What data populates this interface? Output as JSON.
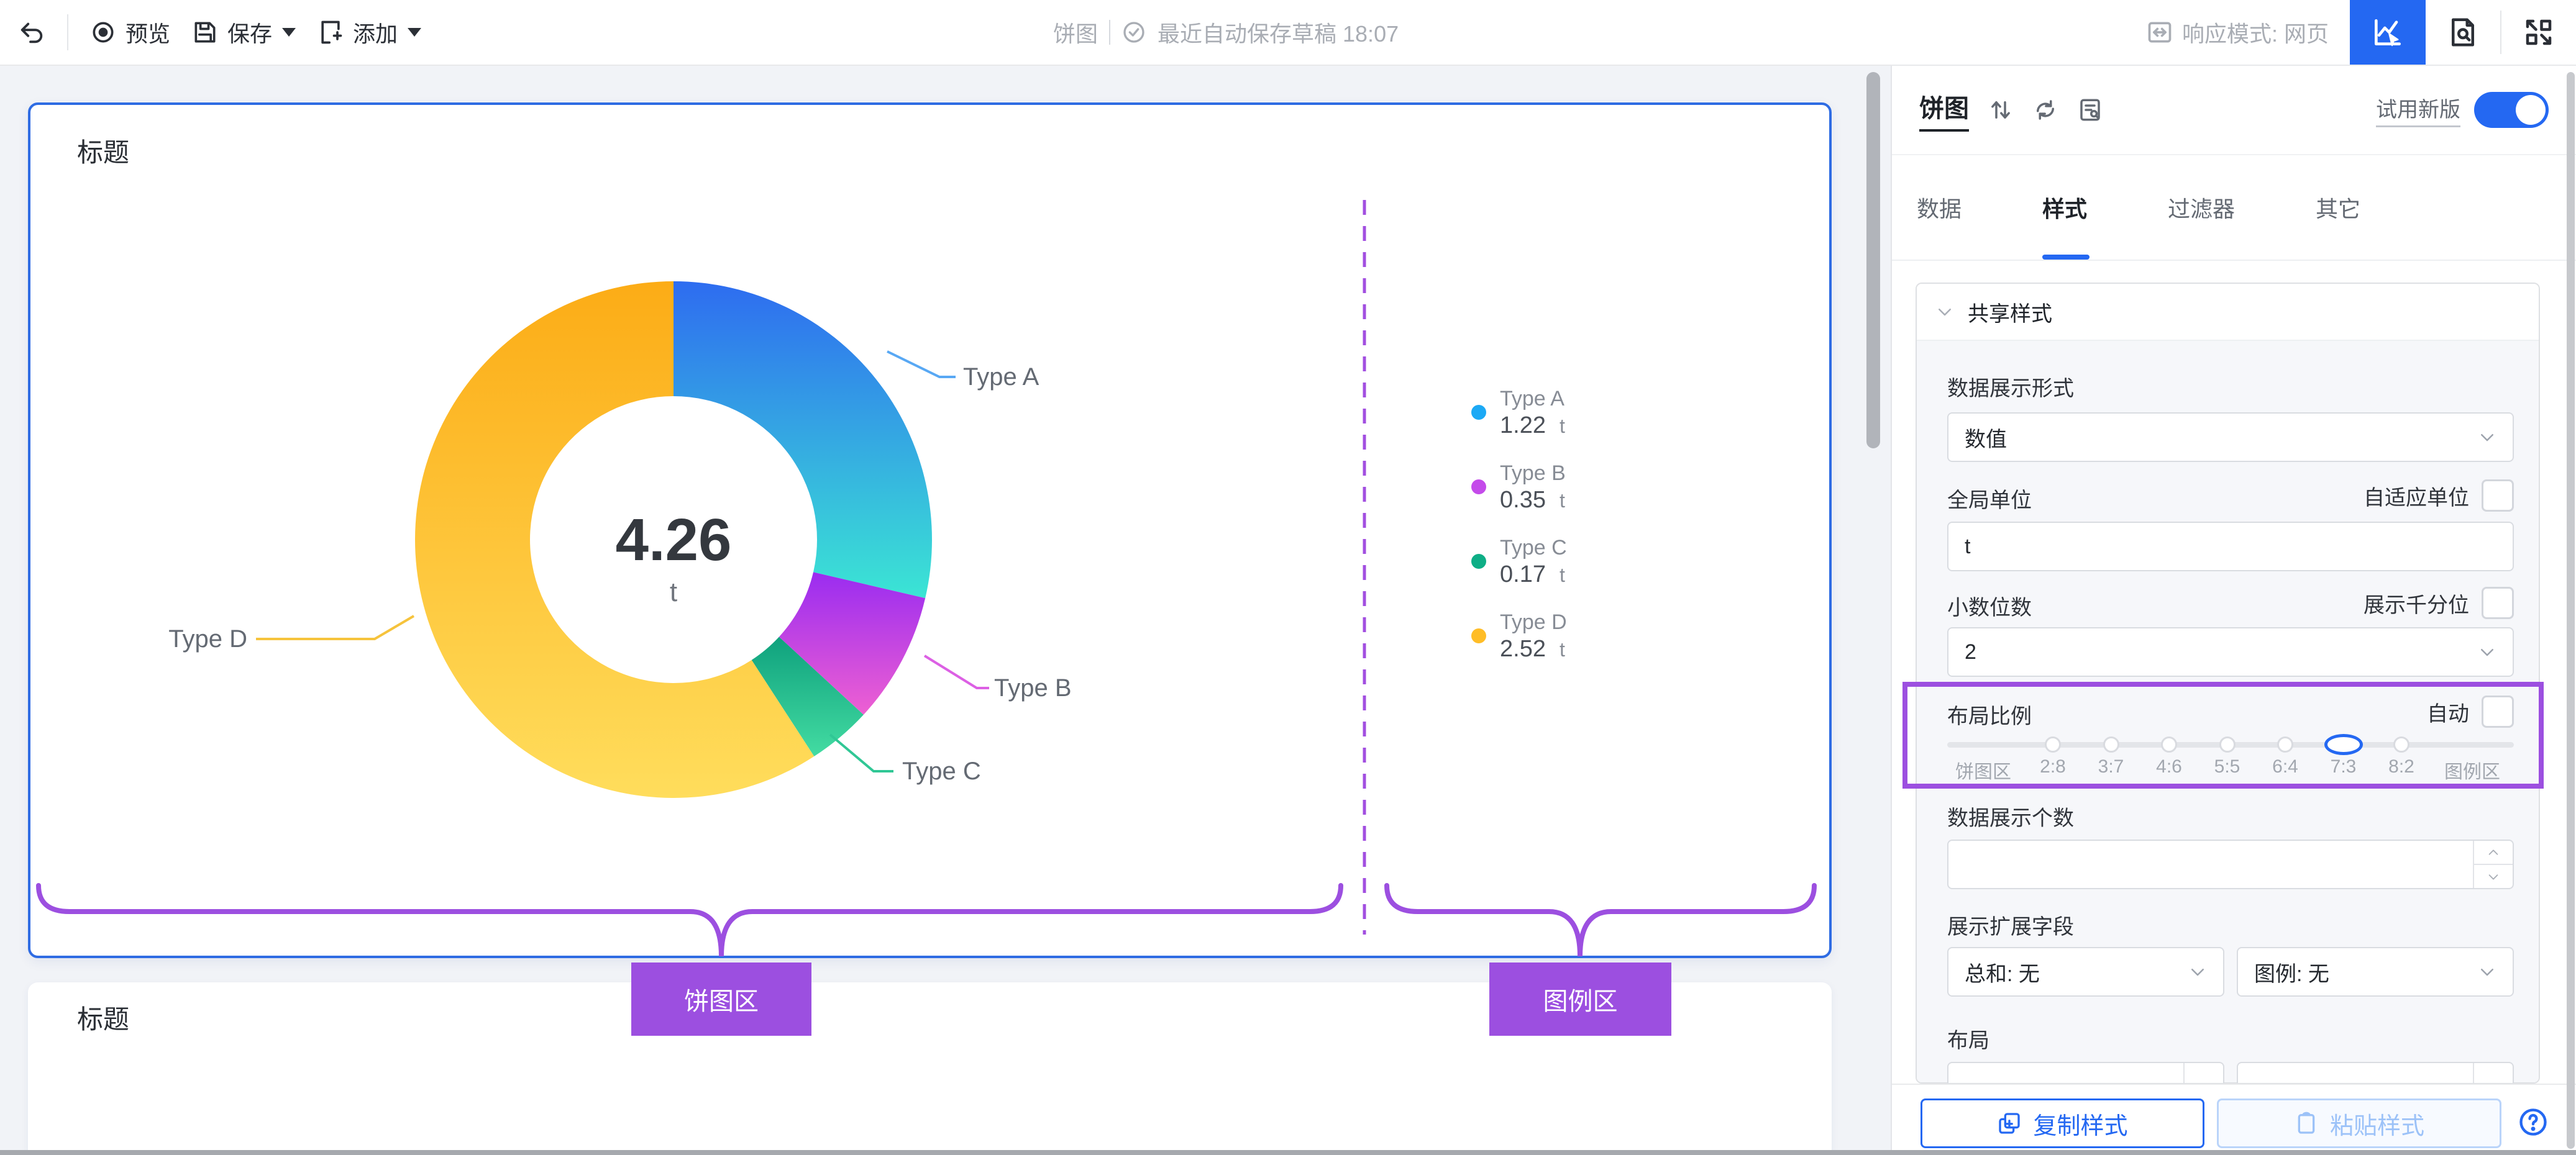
{
  "accent_color": "#2468F2",
  "annotation_color": "#9C4FE0",
  "toolbar": {
    "preview_label": "预览",
    "save_label": "保存",
    "add_label": "添加",
    "center": {
      "chart_name": "饼图",
      "autosave_text": "最近自动保存草稿 18:07"
    },
    "responsive_label": "响应模式: 网页"
  },
  "canvas": {
    "card1_title": "标题",
    "card2_title": "标题",
    "pie_area_label": "饼图区",
    "legend_area_label": "图例区"
  },
  "chart_data": {
    "type": "pie",
    "donut": true,
    "title": "标题",
    "categories": [
      "Type A",
      "Type B",
      "Type C",
      "Type D"
    ],
    "values": [
      1.22,
      0.35,
      0.17,
      2.52
    ],
    "unit": "t",
    "center_value": "4.26",
    "center_unit": "t",
    "legend_position": "right",
    "slice_gradients": [
      [
        "#2E6CF0",
        "#3BE5D4"
      ],
      [
        "#9A2CF0",
        "#EE60D2"
      ],
      [
        "#0FA17D",
        "#43DCA2"
      ],
      [
        "#FCAC16",
        "#FFDD5C"
      ]
    ],
    "legend_dot_colors": [
      "#1CA9F5",
      "#C44BEA",
      "#0EAE86",
      "#FFBD27"
    ],
    "callout_line_colors": [
      "#58A8F4",
      "#DC60E4",
      "#30C795",
      "#F6C33C"
    ],
    "legend_items": [
      {
        "name": "Type A",
        "value": "1.22",
        "unit": "t"
      },
      {
        "name": "Type B",
        "value": "0.35",
        "unit": "t"
      },
      {
        "name": "Type C",
        "value": "0.17",
        "unit": "t"
      },
      {
        "name": "Type D",
        "value": "2.52",
        "unit": "t"
      }
    ]
  },
  "panel": {
    "title": "饼图",
    "try_new_label": "试用新版",
    "tabs": [
      {
        "label": "数据"
      },
      {
        "label": "样式"
      },
      {
        "label": "过滤器"
      },
      {
        "label": "其它"
      }
    ],
    "active_tab": "样式",
    "section_title": "共享样式",
    "fields": {
      "display_format_label": "数据展示形式",
      "display_format_value": "数值",
      "global_unit_label": "全局单位",
      "adaptive_unit_label": "自适应单位",
      "global_unit_value": "t",
      "decimal_label": "小数位数",
      "thousand_label": "展示千分位",
      "decimal_value": "2",
      "layout_ratio_label": "布局比例",
      "auto_label": "自动",
      "slider_labels": [
        "饼图区",
        "2:8",
        "3:7",
        "4:6",
        "5:5",
        "6:4",
        "7:3",
        "8:2",
        "图例区"
      ],
      "slider_selected": "7:3",
      "data_count_label": "数据展示个数",
      "data_count_value": "",
      "extend_field_label": "展示扩展字段",
      "sum_value": "总和: 无",
      "legend_value": "图例: 无",
      "layout_label": "布局"
    },
    "footer": {
      "copy_label": "复制样式",
      "paste_label": "粘贴样式"
    }
  }
}
